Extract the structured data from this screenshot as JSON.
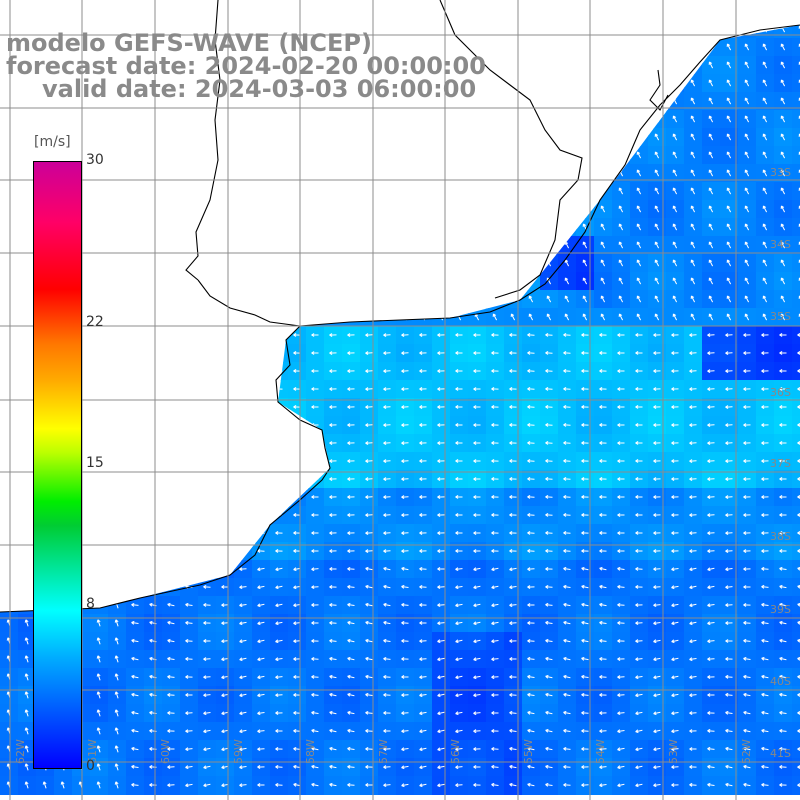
{
  "title": {
    "line1": "modelo GEFS-WAVE (NCEP)",
    "line2": "forecast date: 2024-02-20 00:00:00",
    "line3": "valid date: 2024-03-03 06:00:00"
  },
  "colorbar": {
    "units": "[m/s]",
    "min": 0,
    "max": 30,
    "ticks": [
      {
        "label": "30",
        "value": 30
      },
      {
        "label": "22",
        "value": 22
      },
      {
        "label": "15",
        "value": 15
      },
      {
        "label": "8",
        "value": 8
      },
      {
        "label": "0",
        "value": 0
      }
    ]
  },
  "lat_labels": [
    "33S",
    "34S",
    "35S",
    "36S",
    "37S",
    "38S",
    "39S",
    "40S",
    "41S"
  ],
  "lon_labels": [
    "62W",
    "61W",
    "60W",
    "59W",
    "58W",
    "57W",
    "56W",
    "55W",
    "54W",
    "53W",
    "52W"
  ],
  "colors": {
    "land": "#ffffff",
    "coast": "#000000",
    "grid": "#8c8c8c",
    "arrows": "#ffffff",
    "title_text": "#8a8a8a"
  }
}
